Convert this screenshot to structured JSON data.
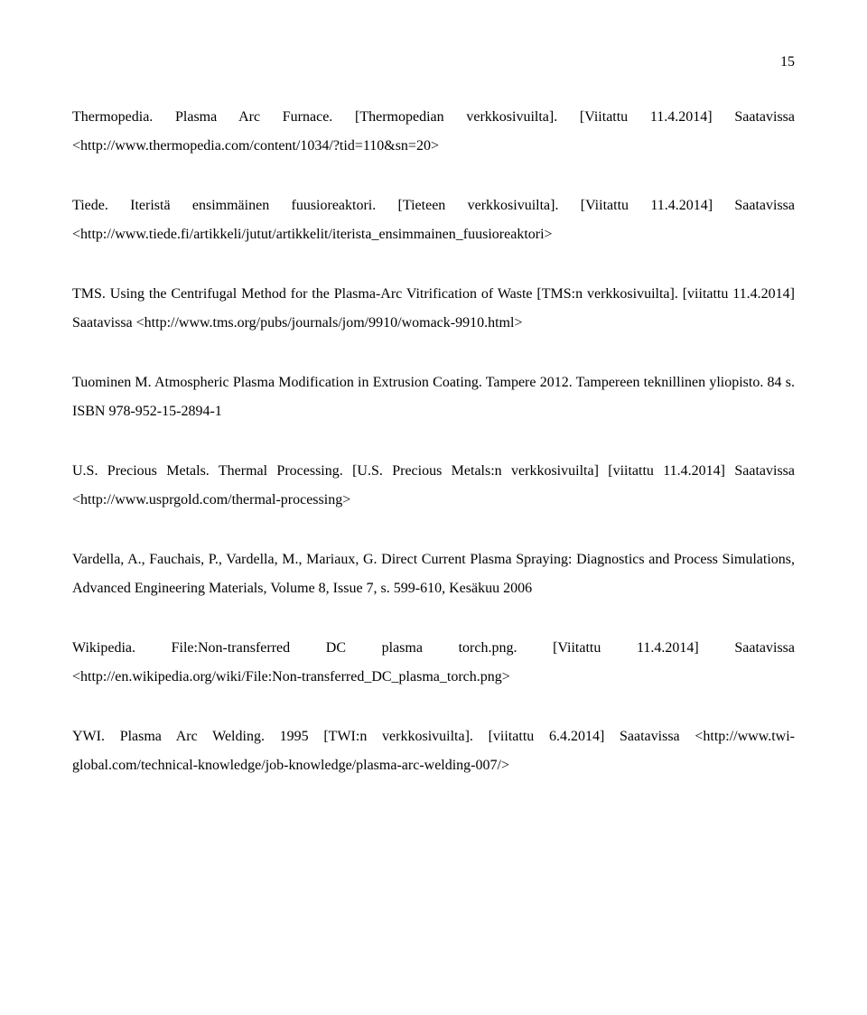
{
  "page_number": "15",
  "font": {
    "family": "Times New Roman",
    "body_size_pt": 12,
    "line_height": 2.0,
    "color": "#000000",
    "background": "#ffffff",
    "text_align": "justify"
  },
  "references": [
    {
      "text": "Thermopedia. Plasma Arc Furnace. [Thermopedian verkkosivuilta]. [Viitattu 11.4.2014] Saatavissa <http://www.thermopedia.com/content/1034/?tid=110&sn=20>"
    },
    {
      "text": "Tiede. Iteristä ensimmäinen fuusioreaktori. [Tieteen verkkosivuilta]. [Viitattu 11.4.2014] Saatavissa <http://www.tiede.fi/artikkeli/jutut/artikkelit/iterista_ensimmainen_fuusioreaktori>"
    },
    {
      "text": "TMS. Using the Centrifugal Method for the Plasma-Arc Vitrification of Waste [TMS:n verkkosivuilta]. [viitattu 11.4.2014] Saatavissa <http://www.tms.org/pubs/journals/jom/9910/womack-9910.html>"
    },
    {
      "text": "Tuominen M. Atmospheric Plasma Modification in Extrusion Coating. Tampere 2012. Tampereen teknillinen yliopisto. 84 s. ISBN 978-952-15-2894-1"
    },
    {
      "text": "U.S. Precious Metals. Thermal Processing. [U.S. Precious Metals:n verkkosivuilta] [viitattu 11.4.2014] Saatavissa <http://www.usprgold.com/thermal-processing>"
    },
    {
      "text": "Vardella, A., Fauchais, P., Vardella, M., Mariaux, G. Direct Current Plasma Spraying: Diagnostics and Process Simulations, Advanced Engineering Materials, Volume 8, Issue 7, s. 599-610, Kesäkuu 2006"
    },
    {
      "text": "Wikipedia. File:Non-transferred DC plasma torch.png. [Viitattu 11.4.2014] Saatavissa <http://en.wikipedia.org/wiki/File:Non-transferred_DC_plasma_torch.png>"
    },
    {
      "text": "YWI. Plasma Arc Welding. 1995 [TWI:n verkkosivuilta]. [viitattu 6.4.2014] Saatavissa <http://www.twi-global.com/technical-knowledge/job-knowledge/plasma-arc-welding-007/>"
    }
  ]
}
